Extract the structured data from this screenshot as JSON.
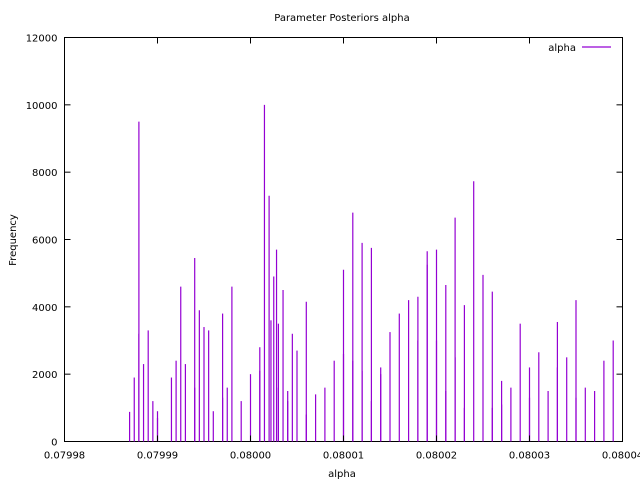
{
  "chart_data": {
    "type": "bar",
    "title": "Parameter Posteriors alpha",
    "xlabel": "alpha",
    "ylabel": "Frequency",
    "xlim": [
      0.07998,
      0.08004
    ],
    "ylim": [
      0,
      12000
    ],
    "xticks": [
      0.07998,
      0.07999,
      0.08,
      0.08001,
      0.08002,
      0.08003,
      0.08004
    ],
    "xtick_labels": [
      "0.07998",
      "0.07999",
      "0.08000",
      "0.08001",
      "0.08002",
      "0.08003",
      "0.08004"
    ],
    "yticks": [
      0,
      2000,
      4000,
      6000,
      8000,
      10000,
      12000
    ],
    "ytick_labels": [
      "0",
      "2000",
      "4000",
      "6000",
      "8000",
      "10000",
      "12000"
    ],
    "grid": false,
    "legend_position": "top-right",
    "series": [
      {
        "name": "alpha",
        "color": "#9400d3",
        "x": [
          0.079987,
          0.0799875,
          0.079988,
          0.079988,
          0.0799885,
          0.079989,
          0.0799895,
          0.07999,
          0.07999,
          0.0799915,
          0.079992,
          0.0799925,
          0.079993,
          0.079994,
          0.079994,
          0.0799945,
          0.079995,
          0.0799955,
          0.079996,
          0.079997,
          0.079997,
          0.0799975,
          0.079998,
          0.079999,
          0.08,
          0.080001,
          0.080001,
          0.0800015,
          0.080002,
          0.0800022,
          0.0800025,
          0.0800028,
          0.080003,
          0.080003,
          0.0800035,
          0.080004,
          0.080004,
          0.0800045,
          0.080005,
          0.080006,
          0.080006,
          0.080007,
          0.080008,
          0.080009,
          0.08001,
          0.08001,
          0.080011,
          0.080011,
          0.080012,
          0.080012,
          0.080013,
          0.080013,
          0.080014,
          0.080014,
          0.080015,
          0.080016,
          0.080017,
          0.080018,
          0.080018,
          0.080019,
          0.080019,
          0.08002,
          0.08002,
          0.080021,
          0.080021,
          0.080022,
          0.080022,
          0.080023,
          0.080023,
          0.080024,
          0.080025,
          0.080026,
          0.080026,
          0.080027,
          0.080027,
          0.080028,
          0.080029,
          0.08003,
          0.08003,
          0.080031,
          0.080032,
          0.080033,
          0.080033,
          0.080034,
          0.080035,
          0.080035,
          0.080036,
          0.080037,
          0.080038,
          0.080039
        ],
        "values": [
          880,
          1900,
          3200,
          9500,
          2300,
          3300,
          1200,
          900,
          700,
          1900,
          2400,
          4600,
          2300,
          1600,
          5450,
          3900,
          3400,
          3300,
          900,
          1300,
          3800,
          1600,
          4600,
          1200,
          2000,
          2100,
          2800,
          10000,
          7300,
          3600,
          4900,
          5700,
          3500,
          1600,
          4500,
          1200,
          1500,
          3200,
          2700,
          4150,
          800,
          1400,
          1600,
          2400,
          2600,
          5100,
          2400,
          6800,
          5900,
          2100,
          5750,
          1200,
          2000,
          2200,
          3250,
          3800,
          4200,
          3000,
          4300,
          5650,
          5250,
          3000,
          5700,
          1500,
          4650,
          6650,
          2500,
          1000,
          4050,
          7730,
          4950,
          4450,
          1000,
          1100,
          1800,
          1600,
          3500,
          2200,
          1300,
          2650,
          1500,
          3550,
          2200,
          2500,
          4200,
          1300,
          1600,
          1500,
          2400,
          3000
        ]
      }
    ]
  }
}
